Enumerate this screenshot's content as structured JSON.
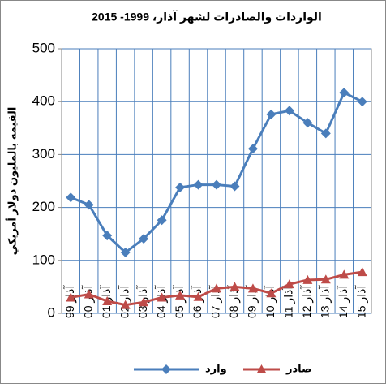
{
  "chart_data": {
    "type": "line",
    "title": "الواردات والصادرات لشهر آذار، 1999- 2015",
    "y_label": "القيمة بالمليون دولار أمريكي",
    "categories": [
      "آذار 99",
      "آذار 00",
      "آذار 01",
      "آذار 02",
      "آذار 03",
      "آذار 04",
      "آذار 05",
      "آذار 06",
      "آذار 07",
      "آذار 08",
      "آذار 09",
      "آذار 10",
      "آذار 11",
      "آذار 12",
      "آذار 13",
      "آذار 14",
      "آذار 15"
    ],
    "series": [
      {
        "name": "وارد",
        "color": "#4a7ebb",
        "marker": "diamond",
        "values": [
          219,
          205,
          147,
          115,
          141,
          176,
          238,
          243,
          243,
          240,
          311,
          376,
          383,
          360,
          340,
          417,
          400
        ]
      },
      {
        "name": "صادر",
        "color": "#be4b48",
        "marker": "triangle",
        "values": [
          30,
          36,
          23,
          16,
          21,
          30,
          34,
          31,
          47,
          50,
          47,
          38,
          55,
          63,
          64,
          73,
          78
        ]
      }
    ],
    "ylim": [
      0,
      500
    ],
    "yticks": [
      0,
      100,
      200,
      300,
      400,
      500
    ],
    "grid": true,
    "legend": "bottom"
  }
}
